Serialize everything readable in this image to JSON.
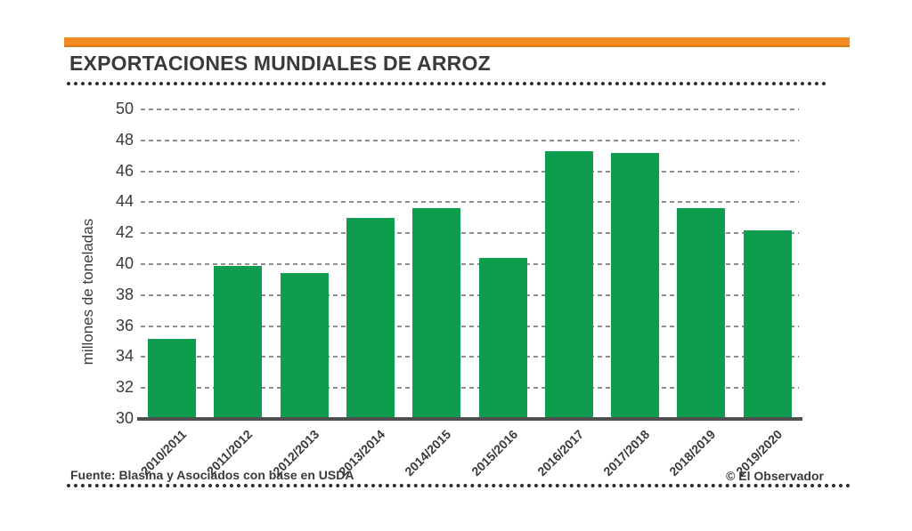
{
  "header": {
    "title": "EXPORTACIONES MUNDIALES DE ARROZ"
  },
  "chart_data": {
    "type": "bar",
    "title": "EXPORTACIONES MUNDIALES DE ARROZ",
    "categories": [
      "2010/2011",
      "2011/2012",
      "2012/2013",
      "2013/2014",
      "2014/2015",
      "2015/2016",
      "2016/2017",
      "2017/2018",
      "2018/2019",
      "2019/2020"
    ],
    "values": [
      35.2,
      39.9,
      39.4,
      43.0,
      43.6,
      40.4,
      47.3,
      47.2,
      43.6,
      42.2
    ],
    "xlabel": "",
    "ylabel": "millones de toneladas",
    "ylim": [
      30,
      50
    ],
    "yticks": [
      30,
      32,
      34,
      36,
      38,
      40,
      42,
      44,
      46,
      48,
      50
    ],
    "grid": true,
    "legend": null,
    "bar_color": "#0E9C4E"
  },
  "footer": {
    "source": "Fuente: Blasina y Asociados con base en USDA",
    "credit": "© El Observador"
  },
  "colors": {
    "accent_orange": "#F28A21",
    "bar_green": "#0E9C4E",
    "text_dark": "#3A3A3A",
    "grid_gray": "#8D8D8D"
  }
}
